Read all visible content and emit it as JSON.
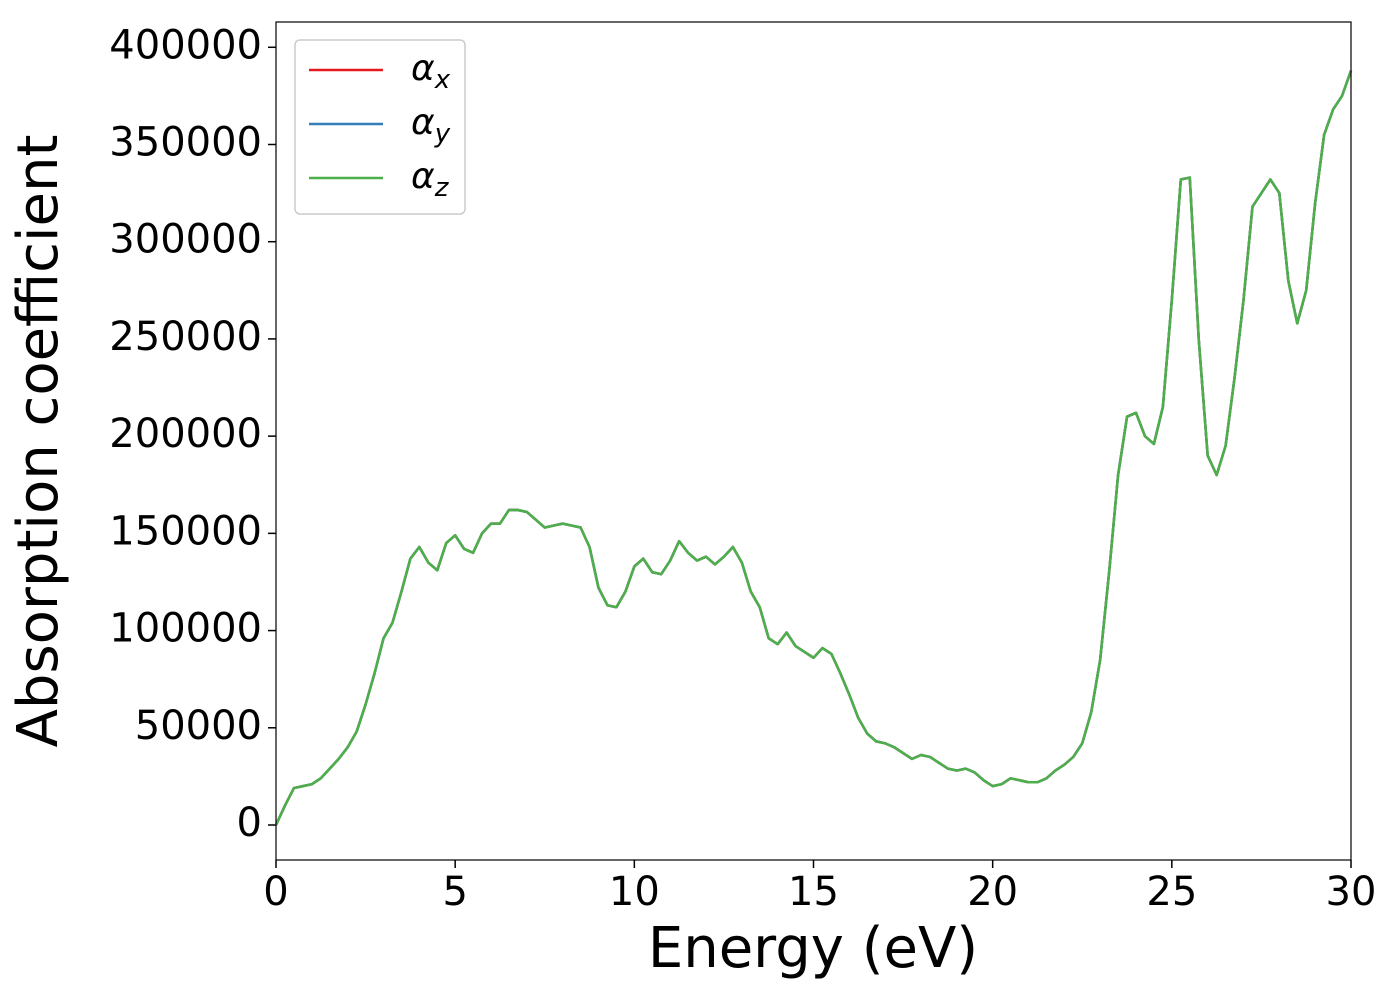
{
  "chart_data": {
    "type": "line",
    "xlabel": "Energy (eV)",
    "ylabel": "Absorption coefficient",
    "xlim": [
      0,
      30
    ],
    "ylim": [
      -18000,
      413000
    ],
    "xticks": [
      0,
      5,
      10,
      15,
      20,
      25,
      30
    ],
    "yticks": [
      0,
      50000,
      100000,
      150000,
      200000,
      250000,
      300000,
      350000,
      400000
    ],
    "grid": false,
    "legend": "upper left",
    "x": [
      0,
      0.25,
      0.5,
      0.75,
      1,
      1.25,
      1.5,
      1.75,
      2,
      2.25,
      2.5,
      2.75,
      3,
      3.25,
      3.5,
      3.75,
      4,
      4.25,
      4.5,
      4.75,
      5,
      5.25,
      5.5,
      5.75,
      6,
      6.25,
      6.5,
      6.75,
      7,
      7.25,
      7.5,
      7.75,
      8,
      8.25,
      8.5,
      8.75,
      9,
      9.25,
      9.5,
      9.75,
      10,
      10.25,
      10.5,
      10.75,
      11,
      11.25,
      11.5,
      11.75,
      12,
      12.25,
      12.5,
      12.75,
      13,
      13.25,
      13.5,
      13.75,
      14,
      14.25,
      14.5,
      14.75,
      15,
      15.25,
      15.5,
      15.75,
      16,
      16.25,
      16.5,
      16.75,
      17,
      17.25,
      17.5,
      17.75,
      18,
      18.25,
      18.5,
      18.75,
      19,
      19.25,
      19.5,
      19.75,
      20,
      20.25,
      20.5,
      20.75,
      21,
      21.25,
      21.5,
      21.75,
      22,
      22.25,
      22.5,
      22.75,
      23,
      23.25,
      23.5,
      23.75,
      24,
      24.25,
      24.5,
      24.75,
      25,
      25.25,
      25.5,
      25.75,
      26,
      26.25,
      26.5,
      26.75,
      27,
      27.25,
      27.5,
      27.75,
      28,
      28.25,
      28.5,
      28.75,
      29,
      29.25,
      29.5,
      29.75,
      30
    ],
    "series": [
      {
        "name": "αx",
        "color": "#e41a1c",
        "values": [
          0,
          10000,
          19000,
          20000,
          21000,
          24000,
          29000,
          34000,
          40000,
          48000,
          62000,
          78000,
          96000,
          104000,
          120000,
          137000,
          143000,
          135000,
          131000,
          145000,
          149000,
          142000,
          140000,
          150000,
          155000,
          155000,
          162000,
          162000,
          161000,
          157000,
          153000,
          154000,
          155000,
          154000,
          153000,
          143000,
          122000,
          113000,
          112000,
          120000,
          133000,
          137000,
          130000,
          129000,
          136000,
          146000,
          140000,
          136000,
          138000,
          134000,
          138000,
          143000,
          135000,
          120000,
          112000,
          96000,
          93000,
          99000,
          92000,
          89000,
          86000,
          91000,
          88000,
          78000,
          67000,
          55000,
          47000,
          43000,
          42000,
          40000,
          37000,
          34000,
          36000,
          35000,
          32000,
          29000,
          28000,
          29000,
          27000,
          23000,
          20000,
          21000,
          24000,
          23000,
          22000,
          22000,
          24000,
          28000,
          31000,
          35000,
          42000,
          58000,
          85000,
          130000,
          180000,
          210000,
          212000,
          200000,
          196000,
          215000,
          270000,
          332000,
          333000,
          250000,
          190000,
          180000,
          195000,
          230000,
          270000,
          318000,
          325000,
          332000,
          325000,
          280000,
          258000,
          275000,
          320000,
          355000,
          368000,
          375000,
          388000
        ]
      },
      {
        "name": "αy",
        "color": "#377eb8",
        "values": [
          0,
          10000,
          19000,
          20000,
          21000,
          24000,
          29000,
          34000,
          40000,
          48000,
          62000,
          78000,
          96000,
          104000,
          120000,
          137000,
          143000,
          135000,
          131000,
          145000,
          149000,
          142000,
          140000,
          150000,
          155000,
          155000,
          162000,
          162000,
          161000,
          157000,
          153000,
          154000,
          155000,
          154000,
          153000,
          143000,
          122000,
          113000,
          112000,
          120000,
          133000,
          137000,
          130000,
          129000,
          136000,
          146000,
          140000,
          136000,
          138000,
          134000,
          138000,
          143000,
          135000,
          120000,
          112000,
          96000,
          93000,
          99000,
          92000,
          89000,
          86000,
          91000,
          88000,
          78000,
          67000,
          55000,
          47000,
          43000,
          42000,
          40000,
          37000,
          34000,
          36000,
          35000,
          32000,
          29000,
          28000,
          29000,
          27000,
          23000,
          20000,
          21000,
          24000,
          23000,
          22000,
          22000,
          24000,
          28000,
          31000,
          35000,
          42000,
          58000,
          85000,
          130000,
          180000,
          210000,
          212000,
          200000,
          196000,
          215000,
          270000,
          332000,
          333000,
          250000,
          190000,
          180000,
          195000,
          230000,
          270000,
          318000,
          325000,
          332000,
          325000,
          280000,
          258000,
          275000,
          320000,
          355000,
          368000,
          375000,
          388000
        ]
      },
      {
        "name": "αz",
        "color": "#4daf4a",
        "values": [
          0,
          10000,
          19000,
          20000,
          21000,
          24000,
          29000,
          34000,
          40000,
          48000,
          62000,
          78000,
          96000,
          104000,
          120000,
          137000,
          143000,
          135000,
          131000,
          145000,
          149000,
          142000,
          140000,
          150000,
          155000,
          155000,
          162000,
          162000,
          161000,
          157000,
          153000,
          154000,
          155000,
          154000,
          153000,
          143000,
          122000,
          113000,
          112000,
          120000,
          133000,
          137000,
          130000,
          129000,
          136000,
          146000,
          140000,
          136000,
          138000,
          134000,
          138000,
          143000,
          135000,
          120000,
          112000,
          96000,
          93000,
          99000,
          92000,
          89000,
          86000,
          91000,
          88000,
          78000,
          67000,
          55000,
          47000,
          43000,
          42000,
          40000,
          37000,
          34000,
          36000,
          35000,
          32000,
          29000,
          28000,
          29000,
          27000,
          23000,
          20000,
          21000,
          24000,
          23000,
          22000,
          22000,
          24000,
          28000,
          31000,
          35000,
          42000,
          58000,
          85000,
          130000,
          180000,
          210000,
          212000,
          200000,
          196000,
          215000,
          270000,
          332000,
          333000,
          250000,
          190000,
          180000,
          195000,
          230000,
          270000,
          318000,
          325000,
          332000,
          325000,
          280000,
          258000,
          275000,
          320000,
          355000,
          368000,
          375000,
          388000
        ]
      }
    ]
  }
}
